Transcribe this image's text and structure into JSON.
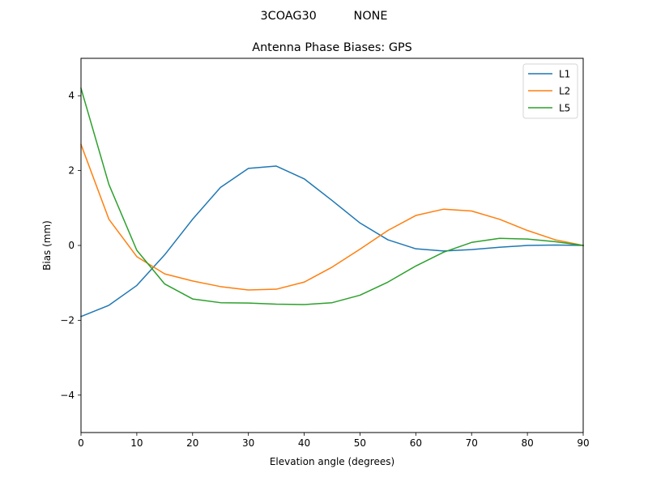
{
  "chart_data": {
    "type": "line",
    "suptitle": "3COAG30          NONE",
    "title": "Antenna Phase Biases: GPS",
    "xlabel": "Elevation angle (degrees)",
    "ylabel": "Bias (mm)",
    "xlim": [
      0,
      90
    ],
    "ylim": [
      -5,
      5
    ],
    "xticks": [
      0,
      10,
      20,
      30,
      40,
      50,
      60,
      70,
      80,
      90
    ],
    "yticks": [
      -4,
      -2,
      0,
      2,
      4
    ],
    "x": [
      0,
      5,
      10,
      15,
      20,
      25,
      30,
      35,
      40,
      45,
      50,
      55,
      60,
      65,
      70,
      75,
      80,
      85,
      90
    ],
    "legend_position": "top-right",
    "series": [
      {
        "name": "L1",
        "color": "#1f77b4",
        "values": [
          -1.9,
          -1.6,
          -1.07,
          -0.25,
          0.7,
          1.55,
          2.06,
          2.12,
          1.78,
          1.2,
          0.6,
          0.15,
          -0.09,
          -0.15,
          -0.11,
          -0.05,
          0.0,
          0.01,
          0.0
        ]
      },
      {
        "name": "L2",
        "color": "#ff7f0e",
        "values": [
          2.7,
          0.7,
          -0.3,
          -0.76,
          -0.95,
          -1.1,
          -1.19,
          -1.17,
          -0.98,
          -0.58,
          -0.1,
          0.4,
          0.8,
          0.97,
          0.92,
          0.7,
          0.4,
          0.15,
          0.0
        ]
      },
      {
        "name": "L5",
        "color": "#2ca02c",
        "values": [
          4.2,
          1.63,
          -0.13,
          -1.03,
          -1.43,
          -1.53,
          -1.54,
          -1.57,
          -1.58,
          -1.53,
          -1.33,
          -0.98,
          -0.55,
          -0.18,
          0.08,
          0.19,
          0.17,
          0.1,
          0.0
        ]
      }
    ]
  }
}
